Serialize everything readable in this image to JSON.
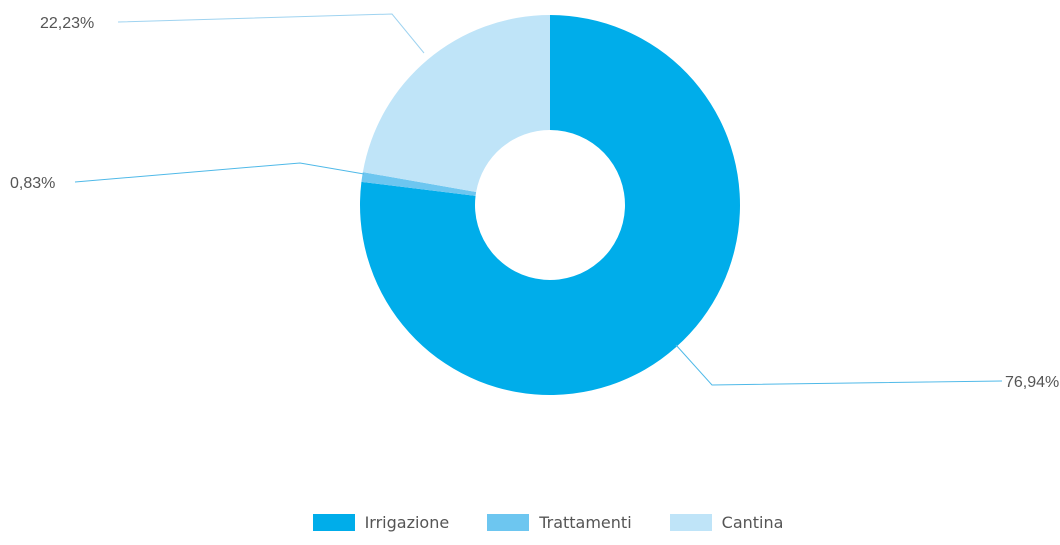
{
  "chart_data": {
    "type": "pie",
    "variant": "donut",
    "categories": [
      "Irrigazione",
      "Trattamenti",
      "Cantina"
    ],
    "values": [
      76.94,
      0.83,
      22.23
    ],
    "value_labels": [
      "76,94%",
      "0,83%",
      "22,23%"
    ],
    "colors": [
      "#00adea",
      "#6dc6f0",
      "#bfe4f8"
    ],
    "legend_position": "bottom-center",
    "start_angle": "top, clockwise"
  }
}
